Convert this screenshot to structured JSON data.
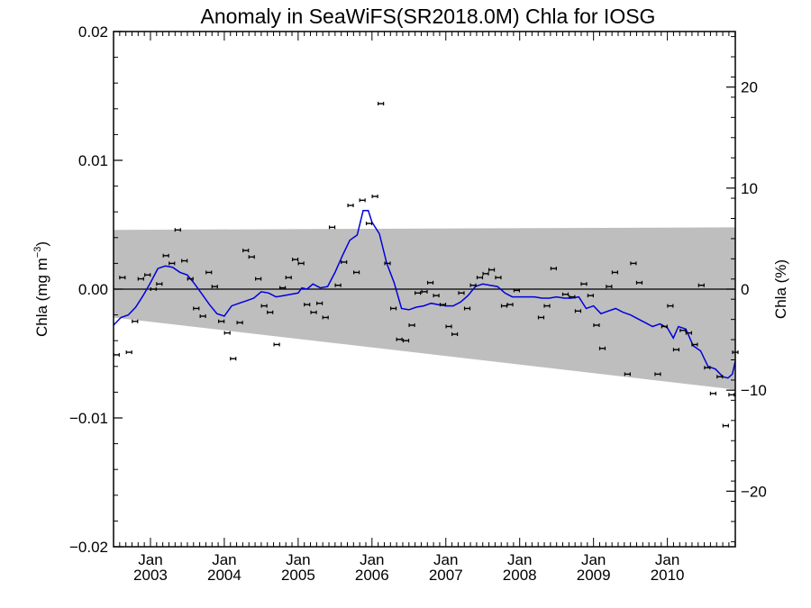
{
  "chart_data": {
    "type": "scatter",
    "title": "Anomaly in SeaWiFS(SR2018.0M) Chla for IOSG",
    "ylabel_left": {
      "text": "Chla (mg m",
      "sup": "−3",
      "close": ")"
    },
    "ylabel_right": "Chla (%)",
    "x_range": [
      2002.5,
      2010.92
    ],
    "y_range": [
      -0.02,
      0.02
    ],
    "y2_range": [
      -25.5,
      25.5
    ],
    "left_ticks": [
      {
        "v": -0.02,
        "label": "−0.02"
      },
      {
        "v": -0.01,
        "label": "−0.01"
      },
      {
        "v": 0.0,
        "label": "0.00"
      },
      {
        "v": 0.01,
        "label": "0.01"
      },
      {
        "v": 0.02,
        "label": "0.02"
      }
    ],
    "right_ticks": [
      {
        "v": -20,
        "label": "−20"
      },
      {
        "v": -10,
        "label": "−10"
      },
      {
        "v": 0,
        "label": "0"
      },
      {
        "v": 10,
        "label": "10"
      },
      {
        "v": 20,
        "label": "20"
      }
    ],
    "x_ticks": [
      {
        "v": 2003.0,
        "month": "Jan",
        "year": "2003"
      },
      {
        "v": 2004.0,
        "month": "Jan",
        "year": "2004"
      },
      {
        "v": 2005.0,
        "month": "Jan",
        "year": "2005"
      },
      {
        "v": 2006.0,
        "month": "Jan",
        "year": "2006"
      },
      {
        "v": 2007.0,
        "month": "Jan",
        "year": "2007"
      },
      {
        "v": 2008.0,
        "month": "Jan",
        "year": "2008"
      },
      {
        "v": 2009.0,
        "month": "Jan",
        "year": "2009"
      },
      {
        "v": 2010.0,
        "month": "Jan",
        "year": "2010"
      }
    ],
    "envelope": {
      "upper": [
        [
          2002.5,
          0.0046
        ],
        [
          2010.92,
          0.0048
        ]
      ],
      "lower": [
        [
          2002.5,
          -0.0022
        ],
        [
          2010.92,
          -0.0078
        ]
      ],
      "color": "#bebebe"
    },
    "zero_line": 0,
    "series": [
      {
        "kind": "monthly-points",
        "color": "#000000",
        "points": [
          [
            2002.54,
            -0.0051
          ],
          [
            2002.62,
            0.0009
          ],
          [
            2002.71,
            -0.0049
          ],
          [
            2002.79,
            -0.0025
          ],
          [
            2002.87,
            0.0008
          ],
          [
            2002.96,
            0.0011
          ],
          [
            2003.04,
            0.0
          ],
          [
            2003.12,
            0.0004
          ],
          [
            2003.21,
            0.0026
          ],
          [
            2003.29,
            0.002
          ],
          [
            2003.37,
            0.0046
          ],
          [
            2003.46,
            0.0022
          ],
          [
            2003.54,
            0.0008
          ],
          [
            2003.62,
            -0.0015
          ],
          [
            2003.71,
            -0.0021
          ],
          [
            2003.79,
            0.0013
          ],
          [
            2003.87,
            0.0002
          ],
          [
            2003.96,
            -0.0025
          ],
          [
            2004.04,
            -0.0034
          ],
          [
            2004.12,
            -0.0054
          ],
          [
            2004.21,
            -0.0026
          ],
          [
            2004.29,
            0.003
          ],
          [
            2004.37,
            0.0025
          ],
          [
            2004.46,
            0.0008
          ],
          [
            2004.54,
            -0.0013
          ],
          [
            2004.62,
            -0.0018
          ],
          [
            2004.71,
            -0.0043
          ],
          [
            2004.79,
            0.0001
          ],
          [
            2004.87,
            0.0009
          ],
          [
            2004.96,
            0.0023
          ],
          [
            2005.04,
            0.002
          ],
          [
            2005.12,
            -0.0012
          ],
          [
            2005.21,
            -0.0018
          ],
          [
            2005.29,
            -0.0011
          ],
          [
            2005.37,
            -0.0022
          ],
          [
            2005.46,
            0.0048
          ],
          [
            2005.54,
            0.0003
          ],
          [
            2005.62,
            0.0021
          ],
          [
            2005.71,
            0.0065
          ],
          [
            2005.79,
            0.0013
          ],
          [
            2005.87,
            0.0069
          ],
          [
            2005.96,
            0.0051
          ],
          [
            2006.04,
            0.0072
          ],
          [
            2006.12,
            0.0144
          ],
          [
            2006.21,
            0.002
          ],
          [
            2006.29,
            -0.0015
          ],
          [
            2006.37,
            -0.0039
          ],
          [
            2006.46,
            -0.004
          ],
          [
            2006.54,
            -0.0028
          ],
          [
            2006.62,
            -0.0003
          ],
          [
            2006.71,
            -0.0002
          ],
          [
            2006.79,
            0.0005
          ],
          [
            2006.87,
            -0.0005
          ],
          [
            2006.96,
            -0.0012
          ],
          [
            2007.04,
            -0.0029
          ],
          [
            2007.12,
            -0.0035
          ],
          [
            2007.21,
            -0.0003
          ],
          [
            2007.29,
            -0.0015
          ],
          [
            2007.37,
            0.0003
          ],
          [
            2007.46,
            0.0009
          ],
          [
            2007.54,
            0.0012
          ],
          [
            2007.62,
            0.0015
          ],
          [
            2007.71,
            0.0009
          ],
          [
            2007.79,
            -0.0013
          ],
          [
            2007.87,
            -0.0012
          ],
          [
            2007.96,
            -0.0001
          ],
          [
            2008.29,
            -0.0022
          ],
          [
            2008.37,
            -0.0013
          ],
          [
            2008.46,
            0.0016
          ],
          [
            2008.62,
            -0.0004
          ],
          [
            2008.71,
            -0.0006
          ],
          [
            2008.79,
            -0.0017
          ],
          [
            2008.87,
            0.0004
          ],
          [
            2008.96,
            -0.0005
          ],
          [
            2009.04,
            -0.0028
          ],
          [
            2009.12,
            -0.0046
          ],
          [
            2009.21,
            0.0002
          ],
          [
            2009.29,
            0.0013
          ],
          [
            2009.46,
            -0.0066
          ],
          [
            2009.54,
            0.002
          ],
          [
            2009.62,
            0.0005
          ],
          [
            2009.87,
            -0.0066
          ],
          [
            2009.96,
            -0.0029
          ],
          [
            2010.04,
            -0.0013
          ],
          [
            2010.12,
            -0.0047
          ],
          [
            2010.21,
            -0.0032
          ],
          [
            2010.29,
            -0.0034
          ],
          [
            2010.37,
            -0.0043
          ],
          [
            2010.46,
            0.0003
          ],
          [
            2010.54,
            -0.0061
          ],
          [
            2010.62,
            -0.0081
          ],
          [
            2010.71,
            -0.0068
          ],
          [
            2010.79,
            -0.0106
          ],
          [
            2010.87,
            -0.0082
          ],
          [
            2010.92,
            -0.0049
          ]
        ]
      },
      {
        "kind": "running-mean",
        "color": "#0000dd",
        "points": [
          [
            2002.5,
            -0.0028
          ],
          [
            2002.6,
            -0.0022
          ],
          [
            2002.7,
            -0.002
          ],
          [
            2002.8,
            -0.0014
          ],
          [
            2002.9,
            -0.0005
          ],
          [
            2003.0,
            0.0005
          ],
          [
            2003.1,
            0.0016
          ],
          [
            2003.2,
            0.0018
          ],
          [
            2003.3,
            0.0017
          ],
          [
            2003.4,
            0.0013
          ],
          [
            2003.5,
            0.0011
          ],
          [
            2003.6,
            0.0004
          ],
          [
            2003.7,
            -0.0004
          ],
          [
            2003.8,
            -0.0012
          ],
          [
            2003.9,
            -0.0019
          ],
          [
            2004.0,
            -0.0021
          ],
          [
            2004.1,
            -0.0013
          ],
          [
            2004.2,
            -0.0011
          ],
          [
            2004.3,
            -0.0009
          ],
          [
            2004.4,
            -0.0007
          ],
          [
            2004.5,
            -0.0002
          ],
          [
            2004.6,
            -0.0003
          ],
          [
            2004.7,
            -0.0006
          ],
          [
            2004.8,
            -0.0005
          ],
          [
            2004.9,
            -0.0004
          ],
          [
            2005.0,
            -0.0003
          ],
          [
            2005.05,
            0.0001
          ],
          [
            2005.12,
            0.0
          ],
          [
            2005.2,
            0.0004
          ],
          [
            2005.3,
            0.0001
          ],
          [
            2005.4,
            0.0002
          ],
          [
            2005.5,
            0.0013
          ],
          [
            2005.6,
            0.0026
          ],
          [
            2005.7,
            0.0038
          ],
          [
            2005.8,
            0.0042
          ],
          [
            2005.88,
            0.0061
          ],
          [
            2005.95,
            0.0061
          ],
          [
            2006.0,
            0.0052
          ],
          [
            2006.1,
            0.0043
          ],
          [
            2006.2,
            0.002
          ],
          [
            2006.3,
            0.0005
          ],
          [
            2006.4,
            -0.0015
          ],
          [
            2006.5,
            -0.0016
          ],
          [
            2006.6,
            -0.0014
          ],
          [
            2006.7,
            -0.0013
          ],
          [
            2006.8,
            -0.0011
          ],
          [
            2006.9,
            -0.0012
          ],
          [
            2007.0,
            -0.0013
          ],
          [
            2007.1,
            -0.0013
          ],
          [
            2007.2,
            -0.001
          ],
          [
            2007.3,
            -0.0005
          ],
          [
            2007.4,
            0.0002
          ],
          [
            2007.5,
            0.0004
          ],
          [
            2007.6,
            0.0003
          ],
          [
            2007.7,
            0.0002
          ],
          [
            2007.8,
            -0.0003
          ],
          [
            2007.9,
            -0.0006
          ],
          [
            2008.0,
            -0.0006
          ],
          [
            2008.1,
            -0.0006
          ],
          [
            2008.2,
            -0.0006
          ],
          [
            2008.3,
            -0.0007
          ],
          [
            2008.4,
            -0.0007
          ],
          [
            2008.5,
            -0.0006
          ],
          [
            2008.6,
            -0.0007
          ],
          [
            2008.7,
            -0.0007
          ],
          [
            2008.8,
            -0.0006
          ],
          [
            2008.9,
            -0.0015
          ],
          [
            2009.0,
            -0.0013
          ],
          [
            2009.1,
            -0.0019
          ],
          [
            2009.2,
            -0.0017
          ],
          [
            2009.3,
            -0.0015
          ],
          [
            2009.4,
            -0.0018
          ],
          [
            2009.5,
            -0.002
          ],
          [
            2009.6,
            -0.0023
          ],
          [
            2009.7,
            -0.0026
          ],
          [
            2009.8,
            -0.0029
          ],
          [
            2009.9,
            -0.0027
          ],
          [
            2010.0,
            -0.003
          ],
          [
            2010.08,
            -0.0038
          ],
          [
            2010.15,
            -0.0029
          ],
          [
            2010.25,
            -0.0031
          ],
          [
            2010.35,
            -0.0044
          ],
          [
            2010.45,
            -0.0048
          ],
          [
            2010.55,
            -0.006
          ],
          [
            2010.65,
            -0.0062
          ],
          [
            2010.75,
            -0.0068
          ],
          [
            2010.82,
            -0.0069
          ],
          [
            2010.88,
            -0.0066
          ],
          [
            2010.92,
            -0.0056
          ]
        ]
      }
    ]
  }
}
